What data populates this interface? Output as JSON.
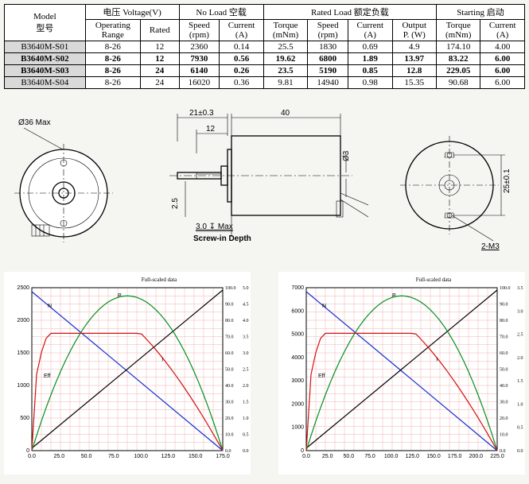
{
  "table": {
    "model_hdr": {
      "en": "Model",
      "cn": "型号"
    },
    "voltage_hdr": "电压  Voltage(V)",
    "noload_hdr": "No Load  空载",
    "rated_hdr": "Rated Load  额定负载",
    "starting_hdr": "Starting  启动",
    "sub": {
      "op_range": "Operating Range",
      "rated": "Rated",
      "speed": "Speed",
      "speed_u": "(rpm)",
      "current": "Current",
      "current_u": "(A)",
      "torque": "Torque",
      "torque_u": "(mNm)",
      "output": "Output",
      "output_u": "P. (W)"
    },
    "rows": [
      {
        "model": "B3640M-S01",
        "bold": false,
        "cells": [
          "8-26",
          "12",
          "2360",
          "0.14",
          "25.5",
          "1830",
          "0.69",
          "4.9",
          "174.10",
          "4.00"
        ]
      },
      {
        "model": "B3640M-S02",
        "bold": true,
        "cells": [
          "8-26",
          "12",
          "7930",
          "0.56",
          "19.62",
          "6800",
          "1.89",
          "13.97",
          "83.22",
          "6.00"
        ]
      },
      {
        "model": "B3640M-S03",
        "bold": true,
        "cells": [
          "8-26",
          "24",
          "6140",
          "0.26",
          "23.5",
          "5190",
          "0.85",
          "12.8",
          "229.05",
          "6.00"
        ]
      },
      {
        "model": "B3640M-S04",
        "bold": false,
        "cells": [
          "8-26",
          "24",
          "16020",
          "0.36",
          "9.81",
          "14940",
          "0.98",
          "15.35",
          "90.68",
          "6.00"
        ]
      }
    ]
  },
  "drawings": {
    "front_dia": "Ø36 Max",
    "side_shaft_len": "21±0.3",
    "side_shaft_step": "12",
    "side_body_len": "40",
    "side_shaft_dia": "Ø3",
    "side_flat": "2.5",
    "screw_depth": "3.0 ↧ Max",
    "screw_depth_lbl": "Screw-in Depth",
    "rear_holes": "2-M3",
    "rear_pitch": "25±0.1"
  },
  "charts": {
    "title": "Full-scaled data",
    "left": {
      "y_left_ticks": [
        "2500",
        "2000",
        "1500",
        "1000",
        "500",
        "0"
      ],
      "x_ticks": [
        "0.0",
        "25.0",
        "50.0",
        "75.0",
        "100.0",
        "125.0",
        "150.0",
        "175.0"
      ],
      "y_right1_ticks": [
        "100.0",
        "90.0",
        "80.0",
        "70.0",
        "60.0",
        "50.0",
        "40.0",
        "30.0",
        "20.0",
        "10.0",
        "0.0"
      ],
      "y_right2_ticks": [
        "5.0",
        "4.5",
        "4.0",
        "3.5",
        "3.0",
        "2.5",
        "2.0",
        "1.5",
        "1.0",
        "0.5",
        "0.0"
      ],
      "curve_labels": {
        "N": "N",
        "P": "P",
        "I": "I",
        "Eff": "Eff"
      },
      "colors": {
        "N": "#1030d0",
        "P": "#009020",
        "I": "#000000",
        "Eff": "#d01010",
        "grid": "#f2b0b0"
      }
    },
    "right": {
      "y_left_ticks": [
        "7000",
        "6000",
        "5000",
        "4000",
        "3000",
        "2000",
        "1000",
        "0"
      ],
      "x_ticks": [
        "0.0",
        "25.0",
        "50.0",
        "75.0",
        "100.0",
        "125.0",
        "150.0",
        "175.0",
        "200.0",
        "225.0"
      ],
      "y_right1_ticks": [
        "100.0",
        "90.0",
        "80.0",
        "70.0",
        "60.0",
        "50.0",
        "40.0",
        "30.0",
        "20.0",
        "10.0",
        "0.0"
      ],
      "y_right2_ticks": [
        "3.5",
        "3.0",
        "2.5",
        "2.0",
        "1.5",
        "1.0",
        "0.5",
        "0.0"
      ],
      "curve_labels": {
        "N": "N",
        "P": "P",
        "I": "I",
        "Eff": "Eff"
      },
      "colors": {
        "N": "#1030d0",
        "P": "#009020",
        "I": "#000000",
        "Eff": "#d01010",
        "grid": "#f2b0b0"
      }
    }
  }
}
